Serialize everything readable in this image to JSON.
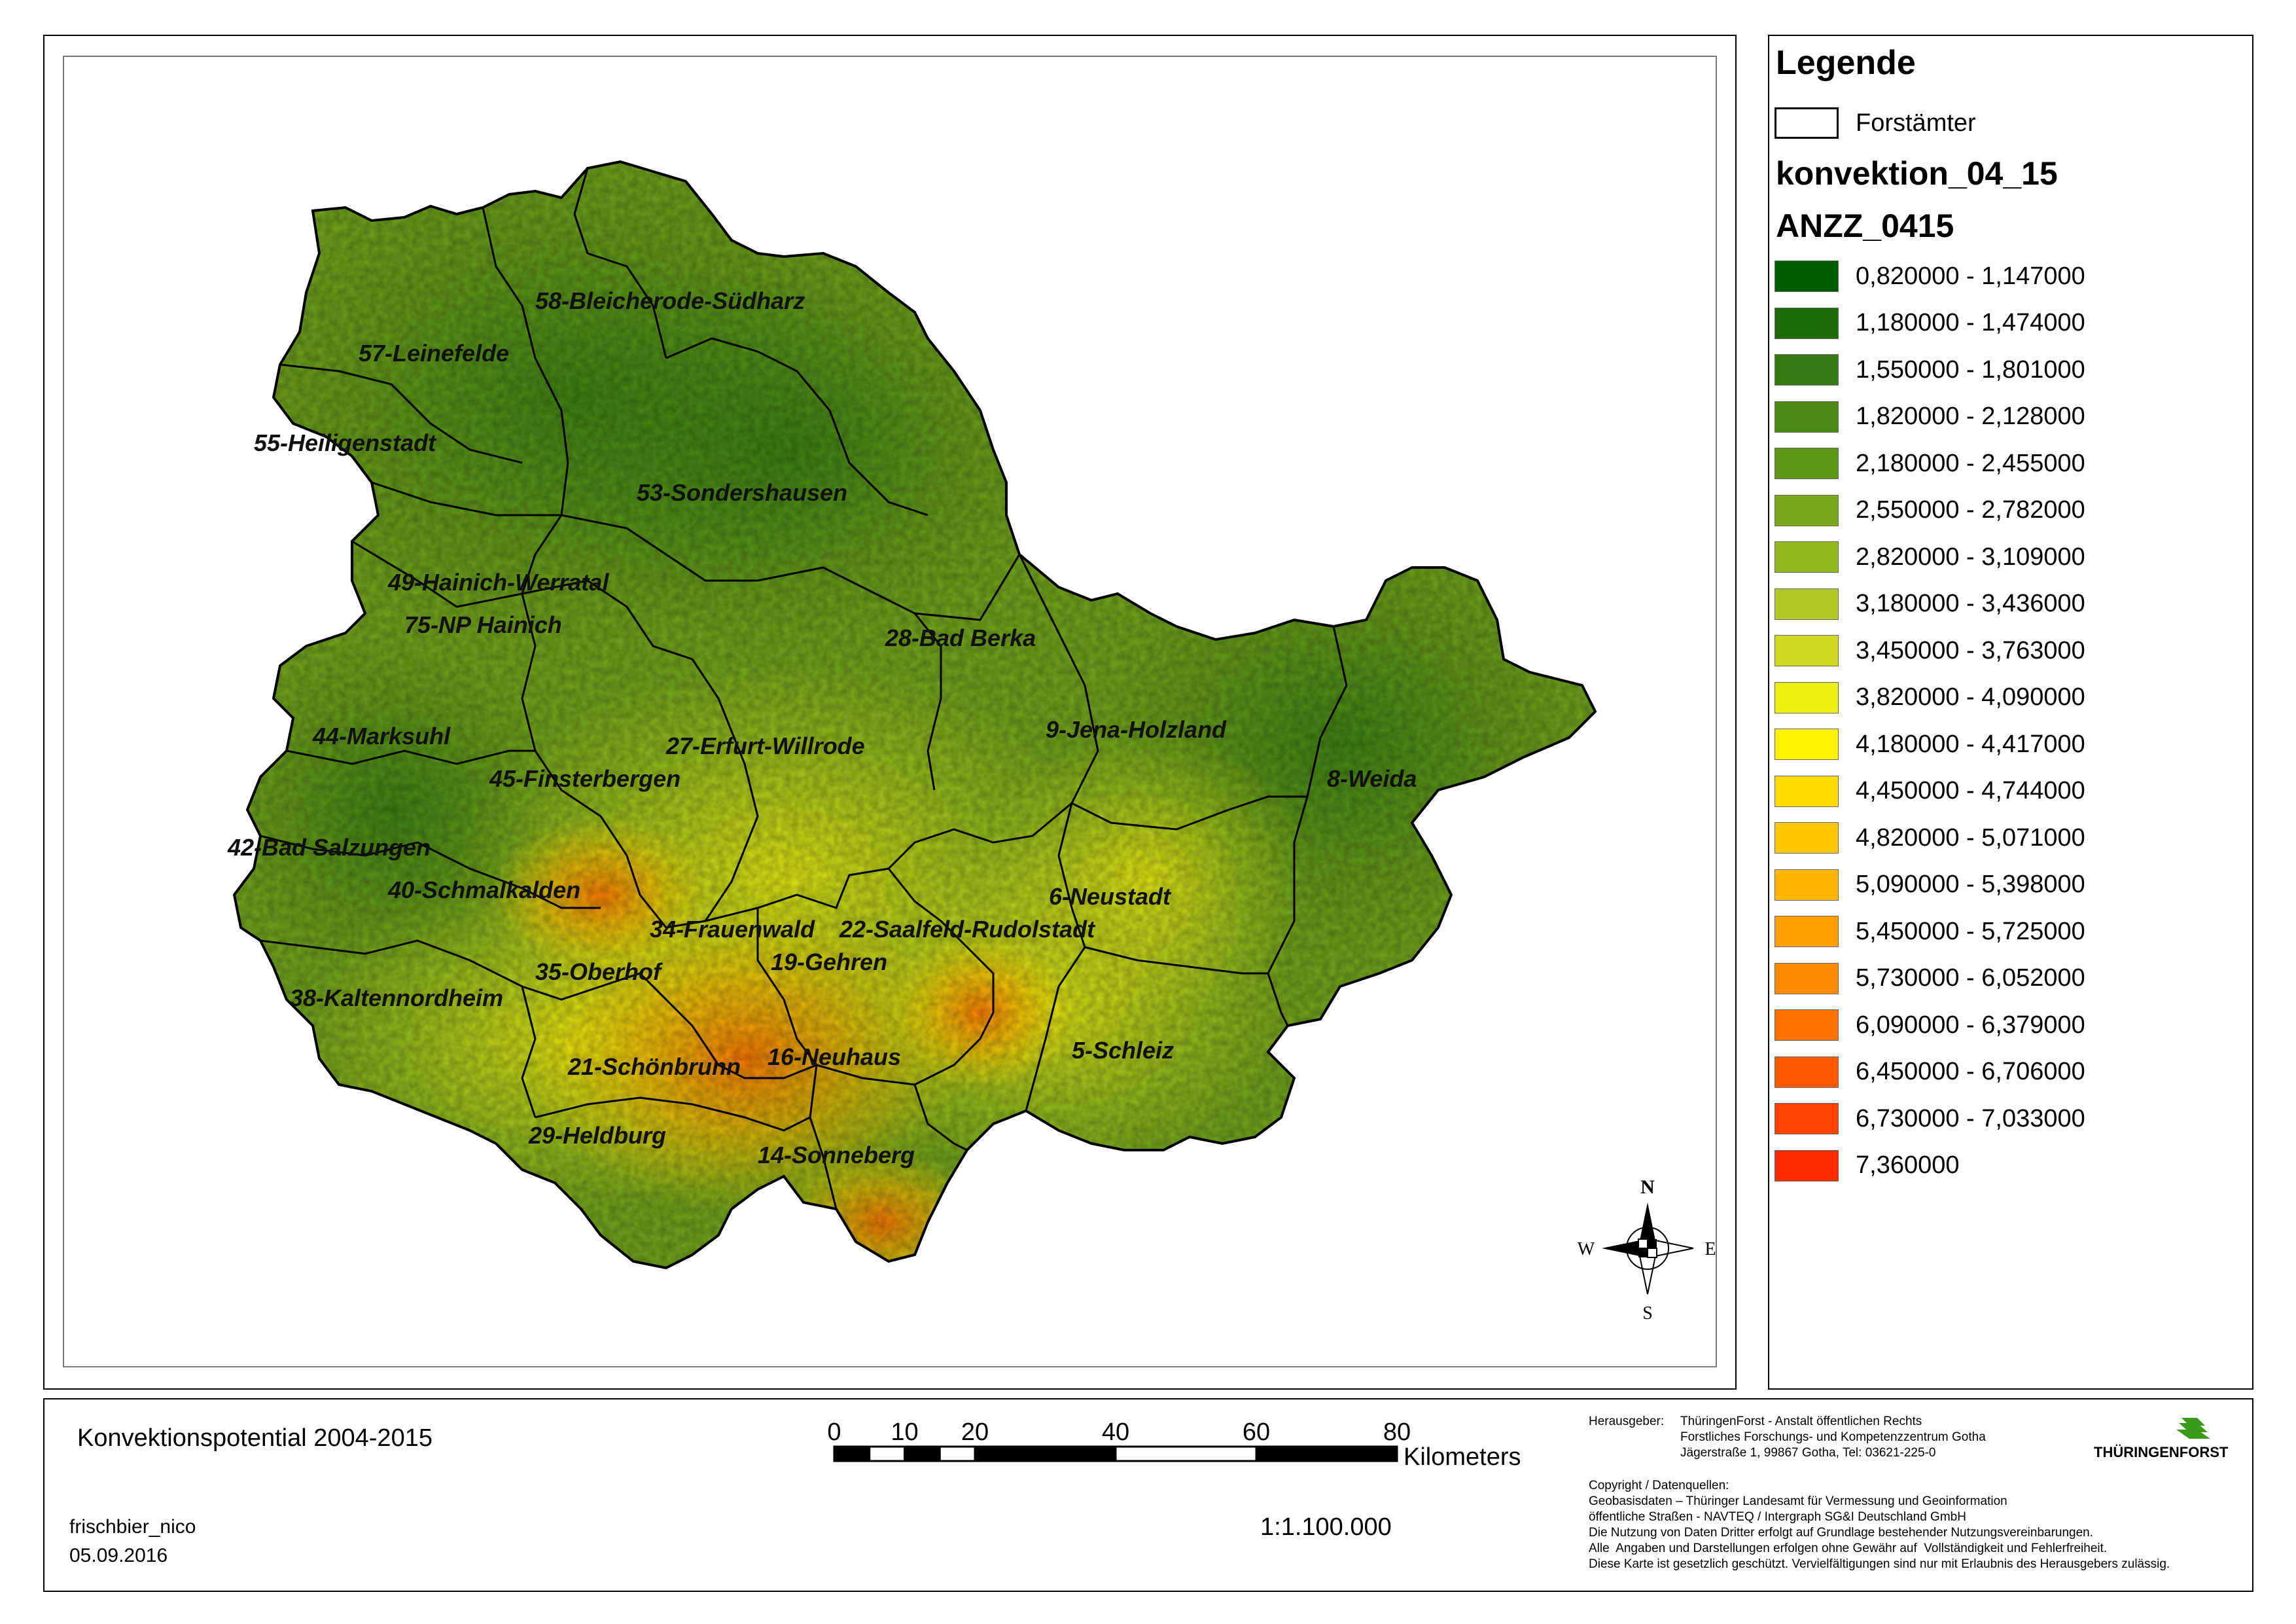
{
  "legend": {
    "title": "Legende",
    "outline_label": "Forstämter",
    "layer_name": "konvektion_04_15",
    "field_name": "ANZZ_0415",
    "classes": [
      {
        "label": "0,820000 - 1,147000",
        "color": "#005a00"
      },
      {
        "label": "1,180000 - 1,474000",
        "color": "#1e6a0a"
      },
      {
        "label": "1,550000 - 1,801000",
        "color": "#357a10"
      },
      {
        "label": "1,820000 - 2,128000",
        "color": "#4a8914"
      },
      {
        "label": "2,180000 - 2,455000",
        "color": "#5f9818"
      },
      {
        "label": "2,550000 - 2,782000",
        "color": "#79a81c"
      },
      {
        "label": "2,820000 - 3,109000",
        "color": "#94b820"
      },
      {
        "label": "3,180000 - 3,436000",
        "color": "#b2c824"
      },
      {
        "label": "3,450000 - 3,763000",
        "color": "#d0da22"
      },
      {
        "label": "3,820000 - 4,090000",
        "color": "#ecef10"
      },
      {
        "label": "4,180000 - 4,417000",
        "color": "#fff200"
      },
      {
        "label": "4,450000 - 4,744000",
        "color": "#ffdc00"
      },
      {
        "label": "4,820000 - 5,071000",
        "color": "#ffc800"
      },
      {
        "label": "5,090000 - 5,398000",
        "color": "#ffb400"
      },
      {
        "label": "5,450000 - 5,725000",
        "color": "#ffa000"
      },
      {
        "label": "5,730000 - 6,052000",
        "color": "#ff8c00"
      },
      {
        "label": "6,090000 - 6,379000",
        "color": "#ff7200"
      },
      {
        "label": "6,450000 - 6,706000",
        "color": "#ff5a00"
      },
      {
        "label": "6,730000 - 7,033000",
        "color": "#ff4200"
      },
      {
        "label": "7,360000",
        "color": "#ff2a00"
      }
    ]
  },
  "forestry_districts": [
    "58-Bleicherode-Südharz",
    "57-Leinefelde",
    "55-Heiligenstadt",
    "53-Sondershausen",
    "49-Hainich-Werratal",
    "75-NP Hainich",
    "28-Bad Berka",
    "44-Marksuhl",
    "27-Erfurt-Willrode",
    "9-Jena-Holzland",
    "45-Finsterbergen",
    "8-Weida",
    "42-Bad Salzungen",
    "40-Schmalkalden",
    "6-Neustadt",
    "34-Frauenwald",
    "22-Saalfeld-Rudolstadt",
    "19-Gehren",
    "35-Oberhof",
    "38-Kaltennordheim",
    "5-Schleiz",
    "21-Schönbrunn",
    "16-Neuhaus",
    "29-Heldburg",
    "14-Sonneberg"
  ],
  "compass": {
    "n": "N",
    "e": "E",
    "s": "S",
    "w": "W"
  },
  "footer": {
    "map_title": "Konvektionspotential 2004-2015",
    "author": "frischbier_nico",
    "date": "05.09.2016",
    "scale_text": "1:1.100.000",
    "scale_ticks": [
      "0",
      "10",
      "20",
      "40",
      "60",
      "80"
    ],
    "scale_unit": "Kilometers",
    "publisher_heading": "Herausgeber:",
    "publisher_lines": "ThüringenForst - Anstalt öffentlichen Rechts\nForstliches Forschungs- und Kompetenzzentrum Gotha\nJägerstraße 1, 99867 Gotha, Tel: 03621-225-0",
    "copyright_lines": "Copyright / Datenquellen:\nGeobasisdaten – Thüringer Landesamt für Vermessung und Geoinformation\nöffentliche Straßen - NAVTEQ / Intergraph SG&I Deutschland GmbH\nDie Nutzung von Daten Dritter erfolgt auf Grundlage bestehender Nutzungsvereinbarungen.\nAlle  Angaben und Darstellungen erfolgen ohne Gewähr auf  Vollständigkeit und Fehlerfreiheit.\nDiese Karte ist gesetzlich geschützt. Vervielfältigungen sind nur mit Erlaubnis des Herausgebers zulässig.",
    "logo_text": "THÜRINGENFORST"
  }
}
